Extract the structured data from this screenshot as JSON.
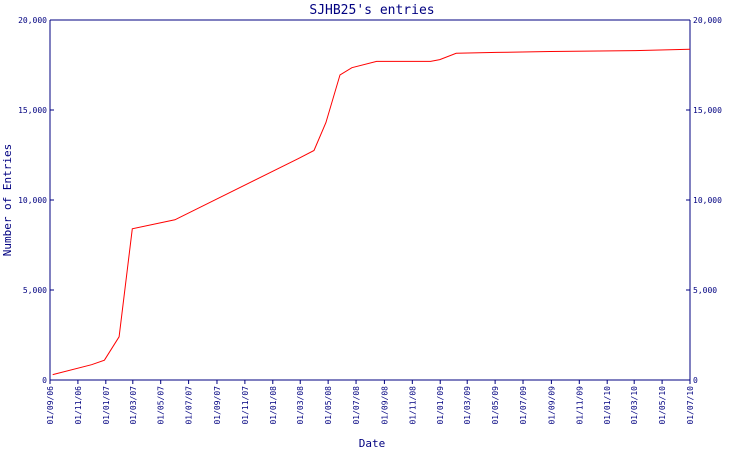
{
  "chart_data": {
    "type": "line",
    "title": "SJHB25's entries",
    "xlabel": "Date",
    "ylabel": "Number of Entries",
    "ylim": [
      0,
      20000
    ],
    "yticks": [
      0,
      5000,
      10000,
      15000,
      20000
    ],
    "ytick_labels": [
      "0",
      "5,000",
      "10,000",
      "15,000",
      "20,000"
    ],
    "xlim": [
      "2006-09-01",
      "2010-07-01"
    ],
    "xticks": [
      "2006-09-01",
      "2006-11-01",
      "2007-01-01",
      "2007-03-01",
      "2007-05-01",
      "2007-07-01",
      "2007-09-01",
      "2007-11-01",
      "2008-01-01",
      "2008-03-01",
      "2008-05-01",
      "2008-07-01",
      "2008-09-01",
      "2008-11-01",
      "2009-01-01",
      "2009-03-01",
      "2009-05-01",
      "2009-07-01",
      "2009-09-01",
      "2009-11-01",
      "2010-01-01",
      "2010-03-01",
      "2010-05-01",
      "2010-07-01"
    ],
    "xtick_labels": [
      "01/09/06",
      "01/11/06",
      "01/01/07",
      "01/03/07",
      "01/05/07",
      "01/07/07",
      "01/09/07",
      "01/11/07",
      "01/01/08",
      "01/03/08",
      "01/05/08",
      "01/07/08",
      "01/09/08",
      "01/11/08",
      "01/01/09",
      "01/03/09",
      "01/05/09",
      "01/07/09",
      "01/09/09",
      "01/11/09",
      "01/01/10",
      "01/03/10",
      "01/05/10",
      "01/07/10"
    ],
    "grid": false,
    "series": [
      {
        "color": "#ff0000",
        "points": [
          [
            "2006-09-07",
            300
          ],
          [
            "2006-12-01",
            850
          ],
          [
            "2006-12-29",
            1100
          ],
          [
            "2007-01-30",
            2400
          ],
          [
            "2007-02-28",
            8400
          ],
          [
            "2007-06-01",
            8900
          ],
          [
            "2008-02-26",
            12300
          ],
          [
            "2008-03-31",
            12750
          ],
          [
            "2008-04-26",
            14300
          ],
          [
            "2008-05-27",
            16950
          ],
          [
            "2008-06-22",
            17350
          ],
          [
            "2008-08-15",
            17700
          ],
          [
            "2008-12-11",
            17700
          ],
          [
            "2008-12-31",
            17800
          ],
          [
            "2009-02-05",
            18150
          ],
          [
            "2009-05-05",
            18200
          ],
          [
            "2009-08-30",
            18250
          ],
          [
            "2010-03-02",
            18300
          ],
          [
            "2010-07-01",
            18380
          ]
        ]
      }
    ]
  }
}
